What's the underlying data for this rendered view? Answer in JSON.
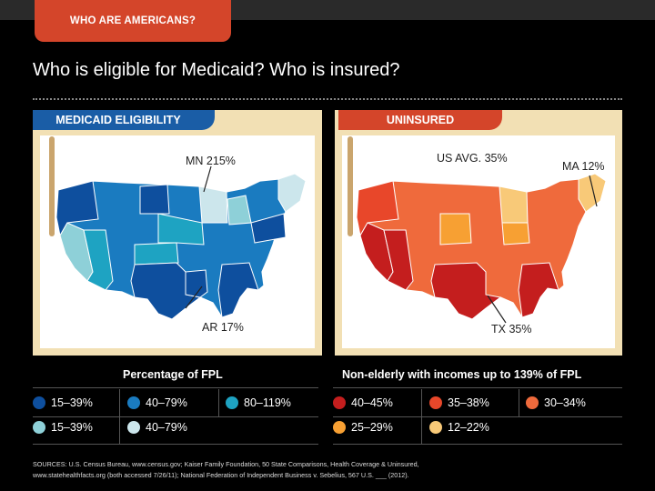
{
  "header": {
    "tag_label": "WHO ARE AMERICANS?",
    "title": "Who is eligible for Medicaid? Who is insured?"
  },
  "left_panel": {
    "tab_label": "MEDICAID ELIGIBILITY",
    "annotations": {
      "mn": "MN 215%",
      "ar": "AR 17%"
    },
    "legend": {
      "title": "Percentage of FPL",
      "items": [
        {
          "label": "15–39%",
          "color": "#0e4f9e"
        },
        {
          "label": "40–79%",
          "color": "#1a7bc0"
        },
        {
          "label": "80–119%",
          "color": "#1ea3c2"
        },
        {
          "label": "15–39%",
          "color": "#8ed0d8"
        },
        {
          "label": "40–79%",
          "color": "#cce6ec"
        }
      ]
    }
  },
  "right_panel": {
    "tab_label": "UNINSURED",
    "annotations": {
      "us": "US AVG. 35%",
      "ma": "MA 12%",
      "tx": "TX 35%"
    },
    "legend": {
      "title": "Non-elderly with incomes up to 139% of FPL",
      "items": [
        {
          "label": "40–45%",
          "color": "#c41e1e"
        },
        {
          "label": "35–38%",
          "color": "#e8472a"
        },
        {
          "label": "30–34%",
          "color": "#ef6a3c"
        },
        {
          "label": "25–29%",
          "color": "#f7a033"
        },
        {
          "label": "12–22%",
          "color": "#f8c978"
        }
      ]
    }
  },
  "sources": {
    "line1": "SOURCES: U.S. Census Bureau, www.census.gov; Kaiser Family Foundation, 50 State Comparisons, Health Coverage & Uninsured,",
    "line2": "www.statehealthfacts.org (both accessed 7/26/11); National Federation of Independent Business v. Sebelius, 567 U.S. ___ (2012)."
  }
}
